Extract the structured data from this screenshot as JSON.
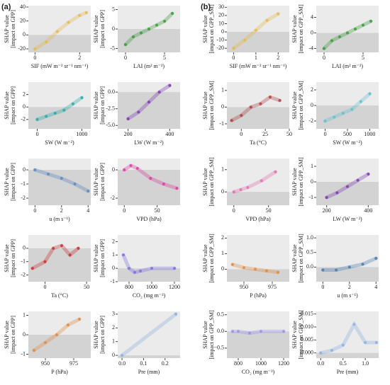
{
  "panel_labels": [
    "(a)",
    "(b)"
  ],
  "chart_data": [
    {
      "type": "scatter",
      "xlabel": "SIF (mW m⁻² sr⁻¹ nm⁻¹)",
      "ylabel": [
        "SHAP value",
        "[impact on GPP]"
      ],
      "color": "#e6b84a",
      "xlim": [
        -0.3,
        2.5
      ],
      "xticks": [
        0,
        2
      ],
      "ylim": [
        -25,
        42
      ],
      "yticks": [
        -20,
        0,
        20,
        40
      ],
      "x": [
        0,
        0.5,
        1,
        1.5,
        2,
        2.3
      ],
      "y": [
        -20,
        -10,
        5,
        18,
        28,
        32
      ]
    },
    {
      "type": "scatter",
      "xlabel": "LAI (m² m⁻²)",
      "ylabel": [
        "SHAP value",
        "[impact on GPP]"
      ],
      "color": "#3a9a3a",
      "xlim": [
        -1,
        7
      ],
      "xticks": [
        0,
        5
      ],
      "ylim": [
        -6,
        6
      ],
      "yticks": [
        -5,
        0,
        5
      ],
      "x": [
        0,
        1,
        2,
        3,
        4,
        5,
        6
      ],
      "y": [
        -4,
        -2,
        -1,
        0,
        1,
        2,
        4
      ]
    },
    {
      "type": "scatter",
      "xlabel": "SW (W m⁻²)",
      "ylabel": [
        "SHAP value",
        "[impact on GPP]"
      ],
      "color": "#2aa8a8",
      "xlim": [
        -200,
        1200
      ],
      "xticks": [
        0,
        1000
      ],
      "ylim": [
        -3.5,
        4
      ],
      "yticks": [
        -2,
        0,
        2
      ],
      "x": [
        0,
        200,
        400,
        600,
        800,
        1000
      ],
      "y": [
        -2,
        -1.5,
        -1,
        -0.5,
        0.5,
        1.5
      ]
    },
    {
      "type": "scatter",
      "xlabel": "LW (W m⁻²)",
      "ylabel": [
        "SHAP value",
        "[impact on GPP]"
      ],
      "color": "#7a3ab0",
      "xlim": [
        150,
        450
      ],
      "xticks": [
        200,
        400
      ],
      "ylim": [
        -5.5,
        1.5
      ],
      "yticks": [
        {
          "value": -5,
          "label": "-5.0"
        },
        -2.5,
        {
          "value": 0,
          "label": "0.0"
        }
      ],
      "x": [
        200,
        250,
        300,
        350,
        400
      ],
      "y": [
        -4,
        -3,
        -1.5,
        0,
        1
      ]
    },
    {
      "type": "scatter",
      "xlabel": "u (m s⁻¹)",
      "ylabel": [
        "SHAP value",
        "[impact on GPP]"
      ],
      "color": "#5a88c0",
      "xlim": [
        -0.5,
        4.2
      ],
      "xticks": [
        0,
        2,
        4
      ],
      "ylim": [
        -2.5,
        0.8
      ],
      "yticks": [
        -2,
        -1,
        0
      ],
      "x": [
        0,
        1,
        2,
        3,
        4
      ],
      "y": [
        0,
        -0.3,
        -0.6,
        -1,
        -1.5
      ]
    },
    {
      "type": "scatter",
      "xlabel": "VPD (hPa)",
      "ylabel": [
        "SHAP value",
        "[impact on GPP]"
      ],
      "color": "#e03aa0",
      "xlim": [
        -10,
        85
      ],
      "xticks": [
        0,
        50
      ],
      "ylim": [
        -2.5,
        0.8
      ],
      "yticks": [
        -2,
        0
      ],
      "x": [
        0,
        10,
        20,
        40,
        60,
        80
      ],
      "y": [
        0,
        0.3,
        0.1,
        -0.6,
        -1,
        -1.3
      ]
    },
    {
      "type": "scatter",
      "xlabel": "Ta (°C)",
      "ylabel": [
        "SHAP value",
        "[impact on GPP]"
      ],
      "color": "#c83030",
      "xlim": [
        -20,
        55
      ],
      "xticks": [
        0,
        50
      ],
      "ylim": [
        -2.5,
        1
      ],
      "yticks": [
        -2,
        -1,
        0
      ],
      "x": [
        -15,
        0,
        10,
        20,
        30,
        40
      ],
      "y": [
        -1.5,
        -1,
        0,
        0.2,
        -0.5,
        0
      ]
    },
    {
      "type": "scatter",
      "xlabel": "CO₂ (mg m⁻³)",
      "ylabel": [
        "SHAP value",
        "[impact on GPP]"
      ],
      "color": "#7a70e0",
      "xlim": [
        700,
        1250
      ],
      "xticks": [
        800,
        1000,
        1200
      ],
      "ylim": [
        -1,
        2.5
      ],
      "yticks": [
        -1,
        0,
        1,
        2
      ],
      "x": [
        750,
        800,
        850,
        900,
        1000,
        1200
      ],
      "y": [
        1,
        0,
        -0.3,
        -0.2,
        0,
        0
      ]
    },
    {
      "type": "scatter",
      "xlabel": "P (hPa)",
      "ylabel": [
        "SHAP value",
        "[impact on GPP]"
      ],
      "color": "#e08a40",
      "xlim": [
        935,
        990
      ],
      "xticks": [
        950,
        975
      ],
      "ylim": [
        -1.2,
        1.2
      ],
      "yticks": [
        -1,
        0,
        1
      ],
      "x": [
        940,
        950,
        960,
        970,
        980
      ],
      "y": [
        -0.8,
        -0.4,
        0,
        0.5,
        0.8
      ]
    },
    {
      "type": "scatter",
      "xlabel": "Pre (mm)",
      "ylabel": [
        "SHAP value",
        "[impact on GPP]"
      ],
      "color": "#8ab0e0",
      "xlim": [
        -0.02,
        0.27
      ],
      "xticks": [
        {
          "value": 0,
          "label": "0.0"
        },
        0.1,
        0.2
      ],
      "ylim": [
        -0.2,
        3.2
      ],
      "yticks": [
        0,
        1,
        2,
        3
      ],
      "x": [
        0,
        0.25
      ],
      "y": [
        0,
        3
      ]
    },
    {
      "type": "scatter",
      "xlabel": "SIF (mW m⁻² sr⁻¹ nm⁻¹)",
      "ylabel": [
        "SHAP value",
        "[impact on GPP_SM]"
      ],
      "color": "#e6b84a",
      "xlim": [
        -0.3,
        2.5
      ],
      "xticks": [
        0,
        1,
        2
      ],
      "ylim": [
        -25,
        32
      ],
      "yticks": [
        -20,
        -10,
        0,
        10,
        20,
        30
      ],
      "x": [
        0,
        0.5,
        1,
        1.5,
        2
      ],
      "y": [
        -20,
        -10,
        2,
        14,
        22
      ]
    },
    {
      "type": "scatter",
      "xlabel": "LAI (m² m⁻²)",
      "ylabel": [
        "SHAP value",
        "[impact on GPP_SM]"
      ],
      "color": "#3a9a3a",
      "xlim": [
        -1,
        7
      ],
      "xticks": [
        0,
        5
      ],
      "ylim": [
        -5,
        7
      ],
      "yticks": [
        -4,
        0,
        4
      ],
      "x": [
        0,
        1,
        2,
        3,
        4,
        5,
        6
      ],
      "y": [
        -4,
        -2,
        -1,
        0,
        1,
        2,
        3
      ]
    },
    {
      "type": "scatter",
      "xlabel": "Ta (°C)",
      "ylabel": [
        "SHAP value",
        "[impact on GPP_SM]"
      ],
      "color": "#b04040",
      "xlim": [
        -15,
        50
      ],
      "xticks": [
        0,
        25,
        50
      ],
      "ylim": [
        -1.3,
        1.5
      ],
      "yticks": [
        -1,
        0,
        1
      ],
      "x": [
        -10,
        0,
        10,
        20,
        30,
        40
      ],
      "y": [
        -0.8,
        -0.5,
        0,
        0.2,
        0.6,
        0.4
      ]
    },
    {
      "type": "scatter",
      "xlabel": "SW (W m⁻²)",
      "ylabel": [
        "SHAP value",
        "[impact on GPP_SM]"
      ],
      "color": "#60c0d0",
      "xlim": [
        -200,
        1200
      ],
      "xticks": [
        0,
        500,
        1000
      ],
      "ylim": [
        -3,
        3
      ],
      "yticks": [
        -2,
        0,
        2
      ],
      "x": [
        0,
        200,
        400,
        600,
        800,
        1000
      ],
      "y": [
        -2,
        -1.5,
        -1,
        -0.5,
        0.5,
        1.5
      ]
    },
    {
      "type": "scatter",
      "xlabel": "VPD (hPa)",
      "ylabel": [
        "SHAP value",
        "[impact on GPP_SM]"
      ],
      "color": "#e070b0",
      "xlim": [
        -10,
        80
      ],
      "xticks": [
        0,
        50
      ],
      "ylim": [
        -0.6,
        1.5
      ],
      "yticks": [
        0,
        1
      ],
      "x": [
        0,
        10,
        20,
        40,
        60
      ],
      "y": [
        0,
        0.1,
        0.2,
        0.5,
        0.9
      ]
    },
    {
      "type": "scatter",
      "xlabel": "LW (W m⁻²)",
      "ylabel": [
        "SHAP value",
        "[impact on GPP_SM]"
      ],
      "color": "#7a3ab0",
      "xlim": [
        150,
        450
      ],
      "xticks": [
        200,
        400
      ],
      "ylim": [
        -1.5,
        1.5
      ],
      "yticks": [
        -1,
        0,
        1
      ],
      "x": [
        200,
        250,
        300,
        350,
        400
      ],
      "y": [
        -1,
        -0.7,
        -0.3,
        0.1,
        0.5
      ]
    },
    {
      "type": "scatter",
      "xlabel": "P (hPa)",
      "ylabel": [
        "SHAP value",
        "[impact on GPP_SM]"
      ],
      "color": "#e08a40",
      "xlim": [
        935,
        990
      ],
      "xticks": [
        950,
        975
      ],
      "ylim": [
        -0.8,
        2.2
      ],
      "yticks": [
        0,
        1,
        2
      ],
      "x": [
        940,
        950,
        960,
        970,
        980
      ],
      "y": [
        0.3,
        0.1,
        0,
        -0.1,
        -0.2
      ]
    },
    {
      "type": "scatter",
      "xlabel": "u (m s⁻¹)",
      "ylabel": [
        "SHAP value",
        "[impact on GPP_SM]"
      ],
      "color": "#4a7ab0",
      "xlim": [
        -0.5,
        4.2
      ],
      "xticks": [
        0,
        2,
        4
      ],
      "ylim": [
        -0.5,
        1.1
      ],
      "yticks": [
        {
          "value": 0,
          "label": "0.0"
        },
        0.5,
        {
          "value": 1,
          "label": "1.0"
        }
      ],
      "x": [
        0,
        1,
        2,
        3,
        4
      ],
      "y": [
        -0.1,
        -0.1,
        0,
        0.1,
        0.3
      ]
    },
    {
      "type": "scatter",
      "xlabel": "CO₂ (mg m⁻³)",
      "ylabel": [
        "SHAP value",
        "[impact on GPP_SM]"
      ],
      "color": "#9a90e8",
      "xlim": [
        700,
        1250
      ],
      "xticks": [
        800,
        1000,
        1200
      ],
      "ylim": [
        -0.8,
        0.6
      ],
      "yticks": [
        {
          "value": -0.5,
          "label": "−0.5"
        },
        {
          "value": 0,
          "label": "0.0"
        },
        0.5
      ],
      "x": [
        750,
        800,
        900,
        1000,
        1200
      ],
      "y": [
        0,
        0,
        -0.05,
        0,
        0
      ]
    },
    {
      "type": "scatter",
      "xlabel": "Pre (mm)",
      "ylabel": [
        "SHAP value",
        "[impact on GPP_SM]"
      ],
      "color": "#8ab0e0",
      "xlim": [
        -0.1,
        1.3
      ],
      "xticks": [
        {
          "value": 0,
          "label": "0.0"
        },
        0.5,
        {
          "value": 1,
          "label": "1.0"
        }
      ],
      "ylim": [
        -0.002,
        0.016
      ],
      "yticks": [
        {
          "value": 0,
          "label": "0.000"
        },
        0.005,
        {
          "value": 0.01,
          "label": "0.010"
        },
        0.015
      ],
      "x": [
        0,
        0.25,
        0.5,
        0.75,
        1,
        1.25
      ],
      "y": [
        0,
        0.001,
        0.003,
        0.011,
        0.004,
        0.004
      ]
    }
  ]
}
